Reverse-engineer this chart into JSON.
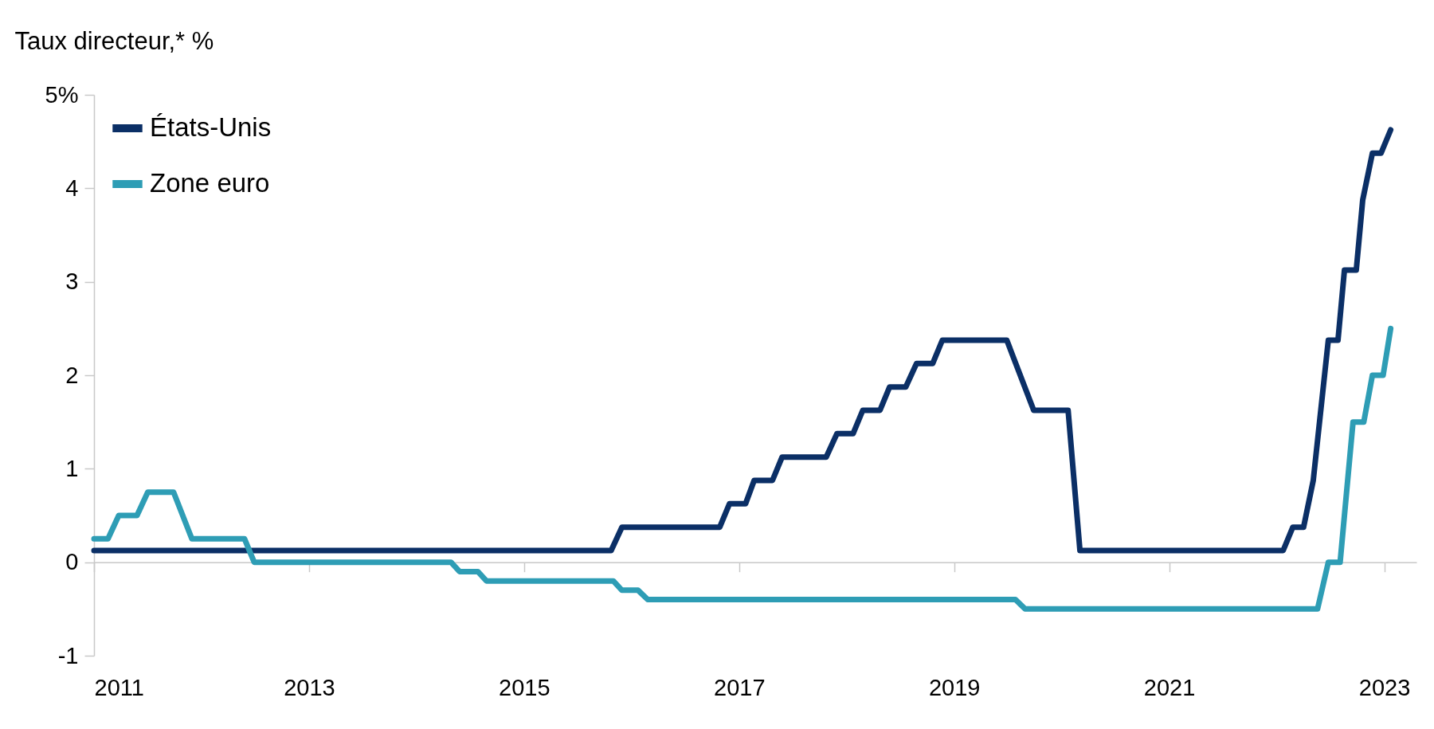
{
  "chart_data": {
    "type": "line",
    "ylabel": "Taux directeur,* %",
    "xlim": [
      2011,
      2023.3
    ],
    "xticks": [
      2011,
      2013,
      2015,
      2017,
      2019,
      2021,
      2023
    ],
    "ylim": [
      -1,
      5
    ],
    "yticks": [
      -1,
      0,
      1,
      2,
      3,
      {
        "value": 5,
        "label": "5%"
      },
      4
    ],
    "legend": "top left",
    "series": [
      {
        "name": "États-Unis",
        "color": "#0b2f66",
        "x": [
          2011,
          2015.81,
          2015.91,
          2016.82,
          2016.91,
          2017.06,
          2017.14,
          2017.31,
          2017.4,
          2017.81,
          2017.91,
          2018.06,
          2018.15,
          2018.31,
          2018.4,
          2018.55,
          2018.65,
          2018.8,
          2018.89,
          2019.49,
          2019.74,
          2020.06,
          2020.17,
          2022.06,
          2022.15,
          2022.25,
          2022.34,
          2022.48,
          2022.57,
          2022.63,
          2022.74,
          2022.8,
          2022.89,
          2022.97,
          2023.06
        ],
        "values": [
          0.125,
          0.125,
          0.375,
          0.375,
          0.625,
          0.625,
          0.875,
          0.875,
          1.125,
          1.125,
          1.375,
          1.375,
          1.625,
          1.625,
          1.875,
          1.875,
          2.125,
          2.125,
          2.375,
          2.375,
          1.625,
          1.625,
          0.125,
          0.125,
          0.375,
          0.375,
          0.875,
          2.375,
          2.375,
          3.125,
          3.125,
          3.875,
          4.375,
          4.375,
          4.625
        ]
      },
      {
        "name": "Zone euro",
        "color": "#2e9db5",
        "x": [
          2011,
          2011.13,
          2011.23,
          2011.4,
          2011.5,
          2011.74,
          2011.91,
          2012.4,
          2012.49,
          2014.32,
          2014.4,
          2014.57,
          2014.65,
          2015.83,
          2015.91,
          2016.06,
          2016.15,
          2019.57,
          2019.66,
          2022.38,
          2022.48,
          2022.59,
          2022.71,
          2022.81,
          2022.89,
          2022.99,
          2023.06
        ],
        "values": [
          0.25,
          0.25,
          0.5,
          0.5,
          0.75,
          0.75,
          0.25,
          0.25,
          0,
          0,
          -0.1,
          -0.1,
          -0.2,
          -0.2,
          -0.3,
          -0.3,
          -0.4,
          -0.4,
          -0.5,
          -0.5,
          0,
          0,
          1.5,
          1.5,
          2,
          2,
          2.5
        ]
      }
    ]
  }
}
